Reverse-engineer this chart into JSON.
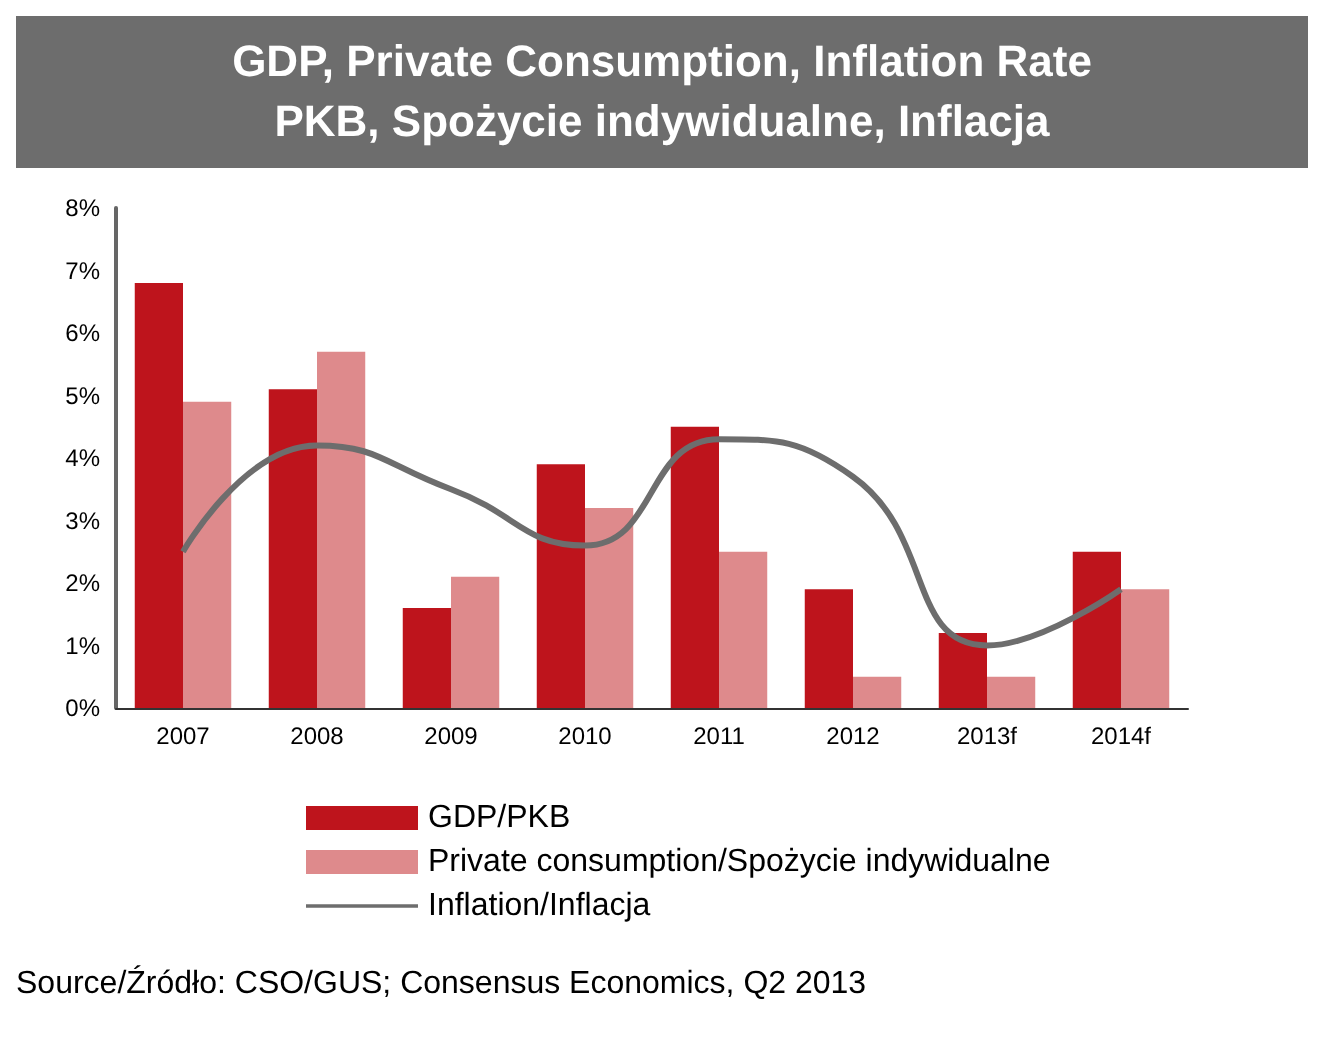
{
  "chart_data": {
    "type": "bar",
    "title": "GDP, Private Consumption, Inflation Rate\nPKB, Spożycie indywidualne, Inflacja",
    "categories": [
      "2007",
      "2008",
      "2009",
      "2010",
      "2011",
      "2012",
      "2013f",
      "2014f"
    ],
    "series": [
      {
        "name": "GDP/PKB",
        "color": "#be141c",
        "values": [
          6.8,
          5.1,
          1.6,
          3.9,
          4.5,
          1.9,
          1.2,
          2.5
        ]
      },
      {
        "name": "Private consumption/Spożycie indywidualne",
        "color": "#de8a8c",
        "values": [
          4.9,
          5.7,
          2.1,
          3.2,
          2.5,
          0.5,
          0.5,
          1.9
        ]
      },
      {
        "name": "Inflation/Inflacja",
        "type": "line",
        "color": "#6d6d6d",
        "marker": "none",
        "values": [
          2.5,
          4.2,
          3.5,
          2.6,
          4.3,
          3.7,
          1.0,
          1.9
        ]
      }
    ],
    "ylim": [
      0,
      8
    ],
    "yticks": [
      {
        "value": 0,
        "label": "0%"
      },
      {
        "value": 1,
        "label": "1%"
      },
      {
        "value": 2,
        "label": "2%"
      },
      {
        "value": 3,
        "label": "3%"
      },
      {
        "value": 4,
        "label": "4%"
      },
      {
        "value": 5,
        "label": "5%"
      },
      {
        "value": 6,
        "label": "6%"
      },
      {
        "value": 7,
        "label": "7%"
      },
      {
        "value": 8,
        "label": "8%"
      }
    ],
    "grid": false,
    "legend": "bottom left",
    "annotations": [
      "Source/Źródło: CSO/GUS; Consensus Economics, Q2 2013"
    ]
  }
}
